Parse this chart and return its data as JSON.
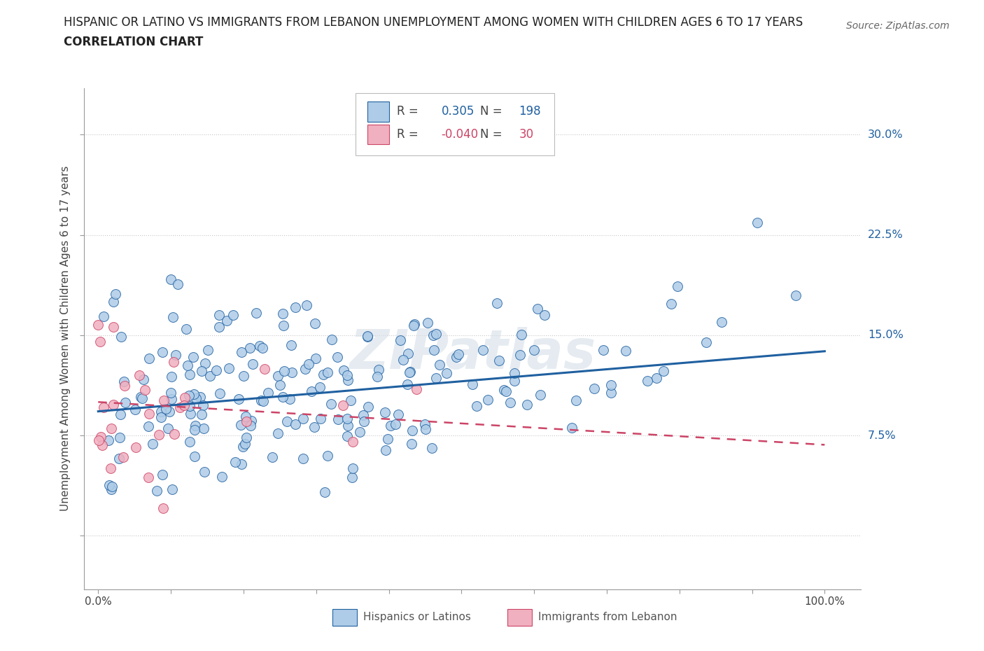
{
  "title_line1": "HISPANIC OR LATINO VS IMMIGRANTS FROM LEBANON UNEMPLOYMENT AMONG WOMEN WITH CHILDREN AGES 6 TO 17 YEARS",
  "title_line2": "CORRELATION CHART",
  "source": "Source: ZipAtlas.com",
  "ylabel": "Unemployment Among Women with Children Ages 6 to 17 years",
  "xlim": [
    -0.02,
    1.05
  ],
  "ylim": [
    -0.04,
    0.335
  ],
  "yticks": [
    0.0,
    0.075,
    0.15,
    0.225,
    0.3
  ],
  "ytick_labels": [
    "",
    "7.5%",
    "15.0%",
    "22.5%",
    "30.0%"
  ],
  "xticks": [
    0.0,
    0.1,
    0.2,
    0.3,
    0.4,
    0.5,
    0.6,
    0.7,
    0.8,
    0.9,
    1.0
  ],
  "xtick_labels": [
    "0.0%",
    "",
    "",
    "",
    "",
    "",
    "",
    "",
    "",
    "",
    "100.0%"
  ],
  "blue_color": "#aecce8",
  "blue_line_color": "#2060a0",
  "pink_color": "#f0b0c0",
  "pink_line_color": "#cc4466",
  "legend_R_blue": "0.305",
  "legend_N_blue": "198",
  "legend_R_pink": "-0.040",
  "legend_N_pink": "30",
  "watermark": "ZIPatlas",
  "grid_color": "#c8c8c8",
  "blue_scatter_seed": 42,
  "pink_scatter_seed": 7,
  "blue_trend_y_start": 0.093,
  "blue_trend_y_end": 0.138,
  "pink_trend_y_start": 0.1,
  "pink_trend_y_end": 0.068
}
